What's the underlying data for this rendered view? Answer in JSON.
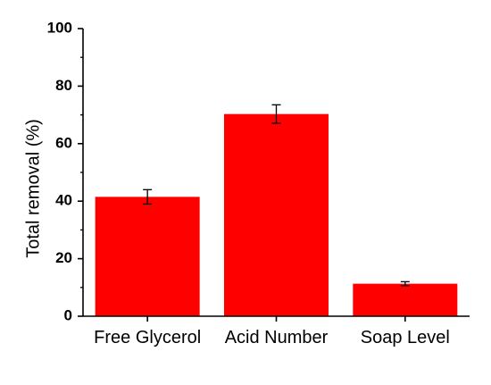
{
  "chart_data": {
    "type": "bar",
    "categories": [
      "Free Glycerol",
      "Acid Number",
      "Soap Level"
    ],
    "values": [
      41.5,
      70.3,
      11.3
    ],
    "errors": [
      2.5,
      3.2,
      0.7
    ],
    "bar_color": "#ff0000",
    "title": "",
    "xlabel": "",
    "ylabel": "Total removal (%)",
    "ylim": [
      0,
      100
    ],
    "yticks": [
      0,
      20,
      40,
      60,
      80,
      100
    ],
    "grid": false
  }
}
